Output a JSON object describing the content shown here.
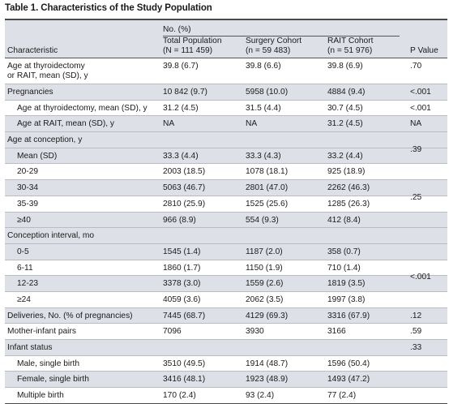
{
  "title": "Table 1. Characteristics of the Study Population",
  "header": {
    "group": "No. (%)",
    "characteristic": "Characteristic",
    "total": [
      "Total Population",
      "(N = 111 459)"
    ],
    "surgery": [
      "Surgery Cohort",
      "(n = 59 483)"
    ],
    "rait": [
      "RAIT Cohort",
      "(n = 51 976)"
    ],
    "p": "P Value"
  },
  "rows": [
    {
      "label": [
        "Age at thyroidectomy",
        "or RAIT, mean (SD), y"
      ],
      "total": "39.8 (6.7)",
      "surgery": "39.8 (6.6)",
      "rait": "39.8 (6.9)",
      "p": ".70"
    },
    {
      "label": "Pregnancies",
      "total": "10 842 (9.7)",
      "surgery": "5958 (10.0)",
      "rait": "4884 (9.4)",
      "p": "<.001"
    },
    {
      "label": "Age at thyroidectomy, mean (SD), y",
      "indent": true,
      "total": "31.2 (4.5)",
      "surgery": "31.5 (4.4)",
      "rait": "30.7 (4.5)",
      "p": "<.001"
    },
    {
      "label": "Age at RAIT, mean (SD), y",
      "indent": true,
      "total": "NA",
      "surgery": "NA",
      "rait": "31.2 (4.5)",
      "p": "NA"
    },
    {
      "label": "Age at conception, y",
      "total": "",
      "surgery": "",
      "rait": "",
      "p": ""
    },
    {
      "label": "Mean (SD)",
      "indent": true,
      "total": "33.3 (4.4)",
      "surgery": "33.3 (4.3)",
      "rait": "33.2 (4.4)",
      "p": ""
    },
    {
      "label": "20-29",
      "indent": true,
      "total": "2003 (18.5)",
      "surgery": "1078 (18.1)",
      "rait": "925 (18.9)",
      "p": ""
    },
    {
      "label": "30-34",
      "indent": true,
      "total": "5063 (46.7)",
      "surgery": "2801 (47.0)",
      "rait": "2262 (46.3)",
      "p": ""
    },
    {
      "label": "35-39",
      "indent": true,
      "total": "2810 (25.9)",
      "surgery": "1525 (25.6)",
      "rait": "1285 (26.3)",
      "p": ""
    },
    {
      "label": "≥40",
      "indent": true,
      "total": "966 (8.9)",
      "surgery": "554 (9.3)",
      "rait": "412 (8.4)",
      "p": ""
    },
    {
      "label": "Conception interval, mo",
      "total": "",
      "surgery": "",
      "rait": "",
      "p": ""
    },
    {
      "label": "0-5",
      "indent": true,
      "total": "1545 (1.4)",
      "surgery": "1187 (2.0)",
      "rait": "358 (0.7)",
      "p": ""
    },
    {
      "label": "6-11",
      "indent": true,
      "total": "1860 (1.7)",
      "surgery": "1150 (1.9)",
      "rait": "710 (1.4)",
      "p": ""
    },
    {
      "label": "12-23",
      "indent": true,
      "total": "3378 (3.0)",
      "surgery": "1559 (2.6)",
      "rait": "1819 (3.5)",
      "p": ""
    },
    {
      "label": "≥24",
      "indent": true,
      "total": "4059 (3.6)",
      "surgery": "2062 (3.5)",
      "rait": "1997 (3.8)",
      "p": ""
    },
    {
      "label": "Deliveries, No. (% of pregnancies)",
      "total": "7445 (68.7)",
      "surgery": "4129 (69.3)",
      "rait": "3316 (67.9)",
      "p": ".12"
    },
    {
      "label": "Mother-infant pairs",
      "total": "7096",
      "surgery": "3930",
      "rait": "3166",
      "p": ".59"
    },
    {
      "label": "Infant status",
      "total": "",
      "surgery": "",
      "rait": "",
      "p": ".33"
    },
    {
      "label": "Male, single birth",
      "indent": true,
      "total": "3510 (49.5)",
      "surgery": "1914 (48.7)",
      "rait": "1596 (50.4)",
      "p": ""
    },
    {
      "label": "Female, single birth",
      "indent": true,
      "total": "3416 (48.1)",
      "surgery": "1923 (48.9)",
      "rait": "1493 (47.2)",
      "p": ""
    },
    {
      "label": "Multiple birth",
      "indent": true,
      "total": "170 (2.4)",
      "surgery": "93 (2.4)",
      "rait": "77 (2.4)",
      "p": ""
    }
  ],
  "spanning_p": {
    "age_at_conception": ".39",
    "age_groups": ".25",
    "conception_interval": "<.001"
  }
}
